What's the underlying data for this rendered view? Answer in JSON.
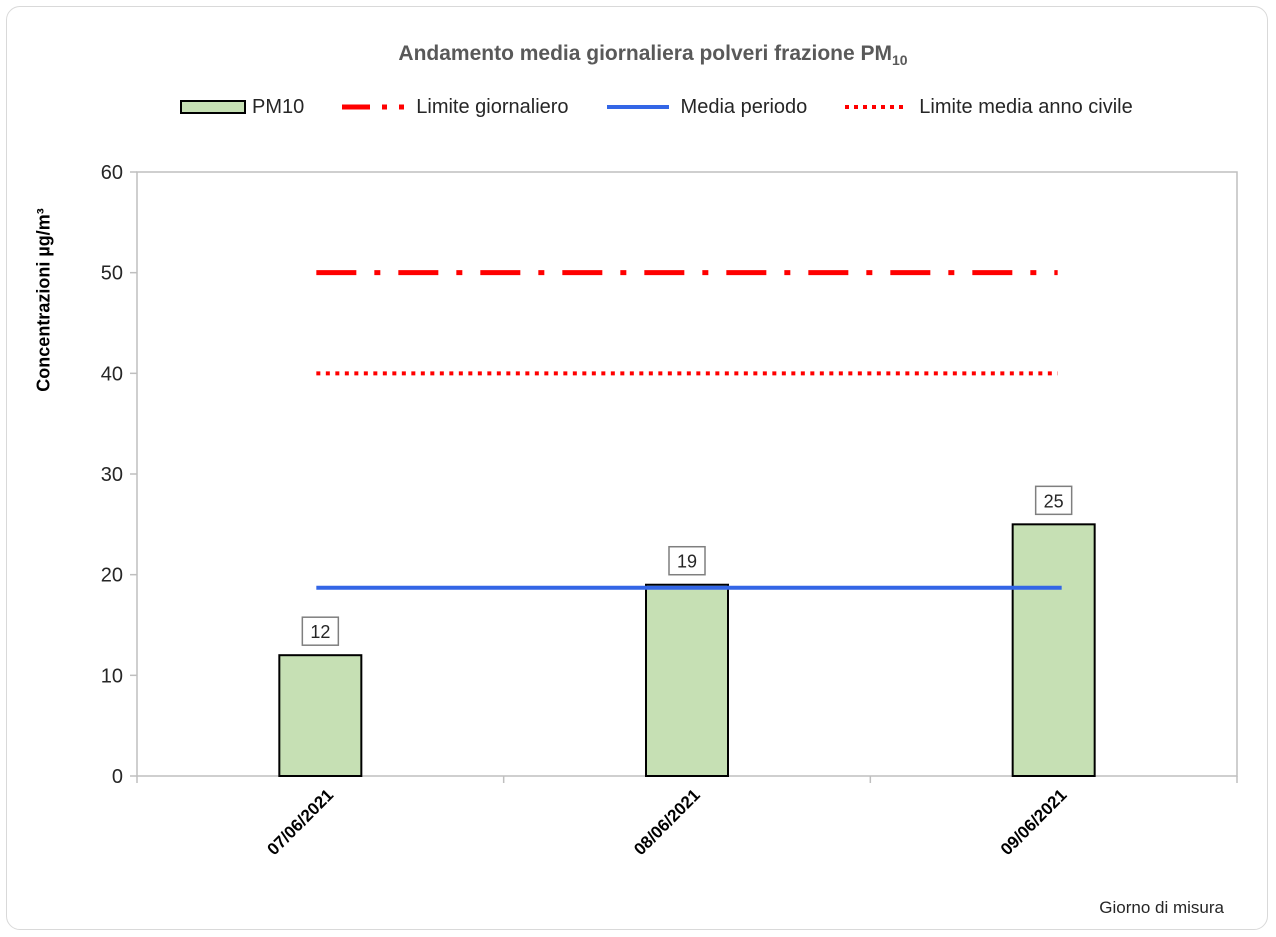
{
  "chart_data": {
    "type": "bar",
    "title": "Andamento media giornaliera polveri frazione PM",
    "title_subscript": "10",
    "xlabel": "Giorno di misura",
    "ylabel": "Concentrazioni µg/m³",
    "ylim": [
      0,
      60
    ],
    "yticks": [
      "0",
      "10",
      "20",
      "30",
      "40",
      "50",
      "60"
    ],
    "categories": [
      "07/06/2021",
      "08/06/2021",
      "09/06/2021"
    ],
    "series": [
      {
        "name": "PM10",
        "type": "bar",
        "values": [
          12,
          19,
          25
        ],
        "color": "#c6e0b4",
        "data_labels": [
          "12",
          "19",
          "25"
        ]
      },
      {
        "name": "Limite giornaliero",
        "type": "line",
        "style": "dash-dot",
        "value": 50,
        "color": "#ff0000"
      },
      {
        "name": "Media periodo",
        "type": "line",
        "style": "solid",
        "value": 18.7,
        "color": "#3366e6"
      },
      {
        "name": "Limite media anno civile",
        "type": "line",
        "style": "dotted",
        "value": 40,
        "color": "#ff0000"
      }
    ],
    "grid": false,
    "legend_position": "top"
  }
}
